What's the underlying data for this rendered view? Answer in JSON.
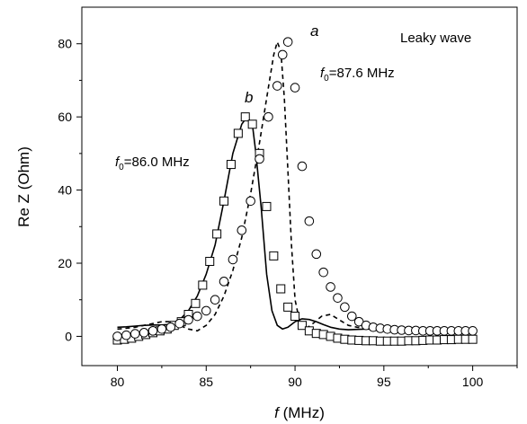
{
  "chart_data": {
    "type": "line",
    "title": "",
    "xlabel": "f (MHz)",
    "xlabel_italic": "f",
    "xlabel_rest": " (MHz)",
    "ylabel": "Re Z (Ohm)",
    "xlim": [
      78,
      102.5
    ],
    "ylim": [
      -8,
      90
    ],
    "xticks": [
      80,
      85,
      90,
      95,
      100
    ],
    "yticks": [
      0,
      20,
      40,
      60,
      80
    ],
    "grid": false,
    "legend": "none",
    "annotations": {
      "leaky": "Leaky wave",
      "label_a": "a",
      "label_b": "b",
      "f0_a_sym": "f",
      "f0_a_sub": "0",
      "f0_a_val": "=87.6 MHz",
      "f0_b_sym": "f",
      "f0_b_sub": "0",
      "f0_b_val": "=86.0 MHz"
    },
    "series": [
      {
        "key": "b_solid",
        "style": "solid",
        "x": [
          80,
          80.5,
          81,
          81.5,
          82,
          82.5,
          83,
          83.5,
          84,
          84.5,
          85,
          85.5,
          86,
          86.5,
          87,
          87.3,
          87.6,
          87.8,
          88.1,
          88.4,
          88.7,
          89,
          89.3,
          89.6,
          90,
          90.4,
          90.8,
          91.2,
          91.6,
          92,
          92.5,
          93,
          93.5,
          94,
          95,
          96,
          97,
          98,
          99,
          100
        ],
        "y": [
          2.5,
          2.6,
          2.8,
          3.0,
          3.1,
          3.1,
          3.3,
          4.5,
          7,
          11,
          17,
          25,
          37,
          50,
          58,
          60,
          58,
          50,
          35,
          17,
          7,
          3,
          2,
          2.5,
          4,
          4.8,
          4.6,
          4,
          3.2,
          2.5,
          2,
          1.8,
          1.9,
          2,
          2,
          2,
          2,
          2,
          2,
          2
        ]
      },
      {
        "key": "a_dashed",
        "style": "dashed",
        "x": [
          80,
          80.5,
          81,
          81.5,
          82,
          82.5,
          83,
          83.5,
          84,
          84.5,
          85,
          85.5,
          86,
          86.5,
          87,
          87.5,
          88,
          88.5,
          88.8,
          89,
          89.2,
          89.4,
          89.6,
          89.8,
          90,
          90.3,
          90.6,
          91,
          91.5,
          92,
          92.5,
          93,
          93.5,
          94,
          95,
          96,
          97,
          98,
          99,
          100
        ],
        "y": [
          2,
          2.2,
          2.5,
          3,
          3.5,
          4,
          4,
          3,
          2,
          1.5,
          3,
          6,
          11,
          18,
          27,
          39,
          53,
          68,
          77,
          80.5,
          78,
          65,
          45,
          25,
          10,
          3,
          2,
          3.5,
          5.5,
          6,
          4.5,
          3,
          2.5,
          2.2,
          2,
          2,
          2,
          2,
          2,
          2
        ]
      },
      {
        "key": "squares",
        "style": "square-marker",
        "x": [
          80,
          80.4,
          80.8,
          81.2,
          81.6,
          82,
          82.4,
          82.8,
          83.2,
          83.6,
          84,
          84.4,
          84.8,
          85.2,
          85.6,
          86,
          86.4,
          86.8,
          87.2,
          87.6,
          88,
          88.4,
          88.8,
          89.2,
          89.6,
          90,
          90.4,
          90.8,
          91.2,
          91.6,
          92,
          92.4,
          92.8,
          93.2,
          93.6,
          94,
          94.4,
          94.8,
          95.2,
          95.6,
          96,
          96.4,
          96.8,
          97.2,
          97.6,
          98,
          98.4,
          98.8,
          99.2,
          99.6,
          100
        ],
        "y": [
          -1,
          -0.8,
          -0.5,
          0,
          0.5,
          1,
          1.5,
          2,
          3,
          4,
          6,
          9,
          14,
          20.5,
          28,
          37,
          47,
          55.5,
          60,
          58,
          50,
          35.5,
          22,
          13,
          8,
          5.5,
          3,
          1.5,
          0.8,
          0.5,
          0,
          -0.5,
          -0.8,
          -1,
          -1.1,
          -1.2,
          -1.2,
          -1.3,
          -1.3,
          -1.3,
          -1.3,
          -1.2,
          -1.2,
          -1.1,
          -1,
          -1,
          -0.9,
          -0.9,
          -0.8,
          -0.8,
          -0.8
        ]
      },
      {
        "key": "circles",
        "style": "circle-marker",
        "x": [
          80,
          80.5,
          81,
          81.5,
          82,
          82.5,
          83,
          83.5,
          84,
          84.5,
          85,
          85.5,
          86,
          86.5,
          87,
          87.5,
          88,
          88.5,
          89,
          89.3,
          89.6,
          90,
          90.4,
          90.8,
          91.2,
          91.6,
          92,
          92.4,
          92.8,
          93.2,
          93.6,
          94,
          94.4,
          94.8,
          95.2,
          95.6,
          96,
          96.4,
          96.8,
          97.2,
          97.6,
          98,
          98.4,
          98.8,
          99.2,
          99.6,
          100
        ],
        "y": [
          0,
          0.3,
          0.7,
          1,
          1.5,
          2,
          2.5,
          3.5,
          4.5,
          5.5,
          7,
          10,
          15,
          21,
          29,
          37,
          48.5,
          60,
          68.5,
          77,
          80.5,
          68,
          46.5,
          31.5,
          22.5,
          17.5,
          13.5,
          10.5,
          8,
          5.5,
          4,
          3,
          2.5,
          2.2,
          2,
          1.8,
          1.7,
          1.6,
          1.6,
          1.5,
          1.5,
          1.5,
          1.5,
          1.5,
          1.5,
          1.5,
          1.5
        ]
      }
    ]
  }
}
